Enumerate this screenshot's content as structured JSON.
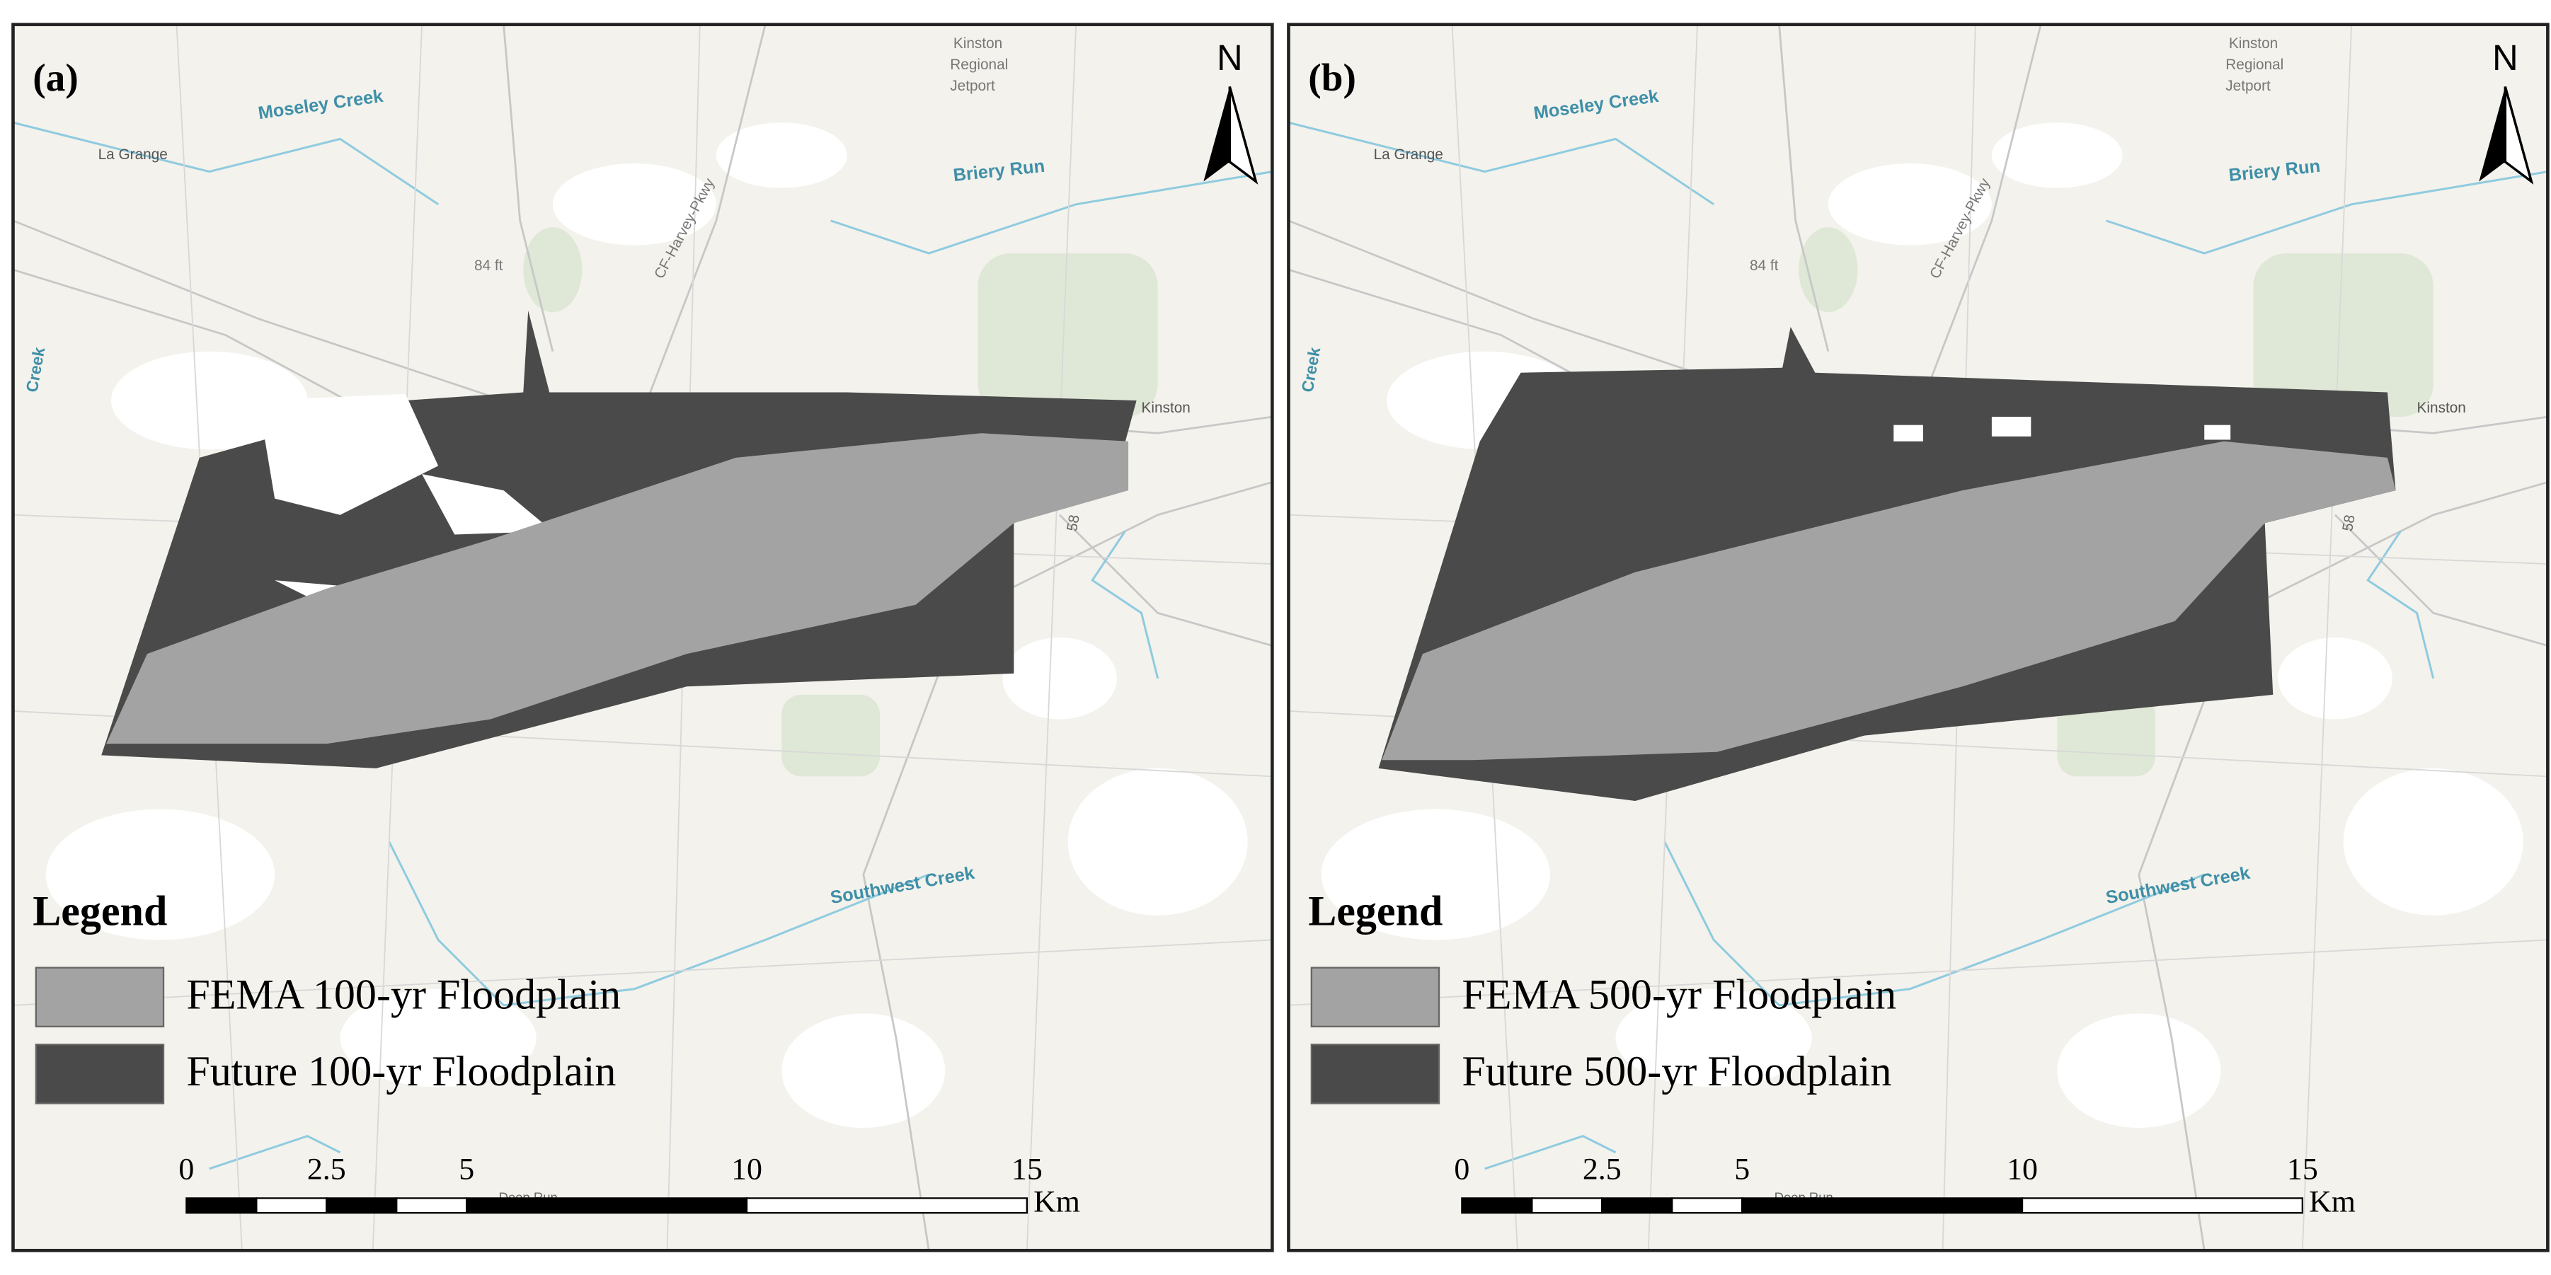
{
  "panels": [
    {
      "label": "(a)",
      "north": "N",
      "places": [
        "Kinston",
        "Regional",
        "Jetport",
        "Moseley Creek",
        "La Grange",
        "Briery Run",
        "84 ft",
        "CF-Harvey-Pkwy",
        "Kinston",
        "Southwest Creek",
        "Deep Run",
        "Creek",
        "58"
      ],
      "legend": {
        "title": "Legend",
        "items": [
          "FEMA 100-yr Floodplain",
          "Future 100-yr Floodplain"
        ]
      },
      "scale": {
        "ticks": [
          0,
          2.5,
          5,
          10,
          15
        ],
        "unit": "Km"
      }
    },
    {
      "label": "(b)",
      "north": "N",
      "places": [
        "Kinston",
        "Regional",
        "Jetport",
        "Moseley Creek",
        "La Grange",
        "Briery Run",
        "84 ft",
        "CF-Harvey-Pkwy",
        "Kinston",
        "Southwest Creek",
        "Deep Run",
        "Creek",
        "58"
      ],
      "legend": {
        "title": "Legend",
        "items": [
          "FEMA 500-yr Floodplain",
          "Future 500-yr Floodplain"
        ]
      },
      "scale": {
        "ticks": [
          0,
          2.5,
          5,
          10,
          15
        ],
        "unit": "Km"
      }
    }
  ]
}
